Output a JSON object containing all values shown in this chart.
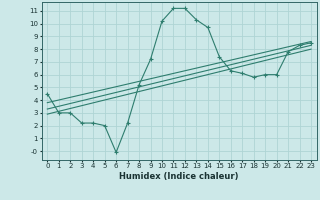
{
  "xlabel": "Humidex (Indice chaleur)",
  "background_color": "#cce8e8",
  "grid_color": "#afd4d4",
  "line_color": "#2e7d6e",
  "xlim": [
    -0.5,
    23.5
  ],
  "ylim": [
    -0.7,
    11.7
  ],
  "xticks": [
    0,
    1,
    2,
    3,
    4,
    5,
    6,
    7,
    8,
    9,
    10,
    11,
    12,
    13,
    14,
    15,
    16,
    17,
    18,
    19,
    20,
    21,
    22,
    23
  ],
  "yticks": [
    0,
    1,
    2,
    3,
    4,
    5,
    6,
    7,
    8,
    9,
    10,
    11
  ],
  "ytick_labels": [
    "-0",
    "1",
    "2",
    "3",
    "4",
    "5",
    "6",
    "7",
    "8",
    "9",
    "10",
    "11"
  ],
  "line1_x": [
    0,
    1,
    2,
    3,
    4,
    5,
    6,
    7,
    8,
    9,
    10,
    11,
    12,
    13,
    14,
    15,
    16,
    17,
    18,
    19,
    20,
    21,
    22,
    23
  ],
  "line1_y": [
    4.5,
    3.0,
    3.0,
    2.2,
    2.2,
    2.0,
    -0.1,
    2.2,
    5.2,
    7.2,
    10.2,
    11.2,
    11.2,
    10.3,
    9.7,
    7.4,
    6.3,
    6.1,
    5.8,
    6.0,
    6.0,
    7.8,
    8.3,
    8.5
  ],
  "line2_x": [
    0,
    23
  ],
  "line2_y": [
    3.8,
    8.6
  ],
  "line3_x": [
    0,
    23
  ],
  "line3_y": [
    3.3,
    8.3
  ],
  "line4_x": [
    0,
    23
  ],
  "line4_y": [
    2.9,
    8.0
  ],
  "spine_color": "#336666",
  "tick_fontsize": 5.0,
  "xlabel_fontsize": 6.0
}
